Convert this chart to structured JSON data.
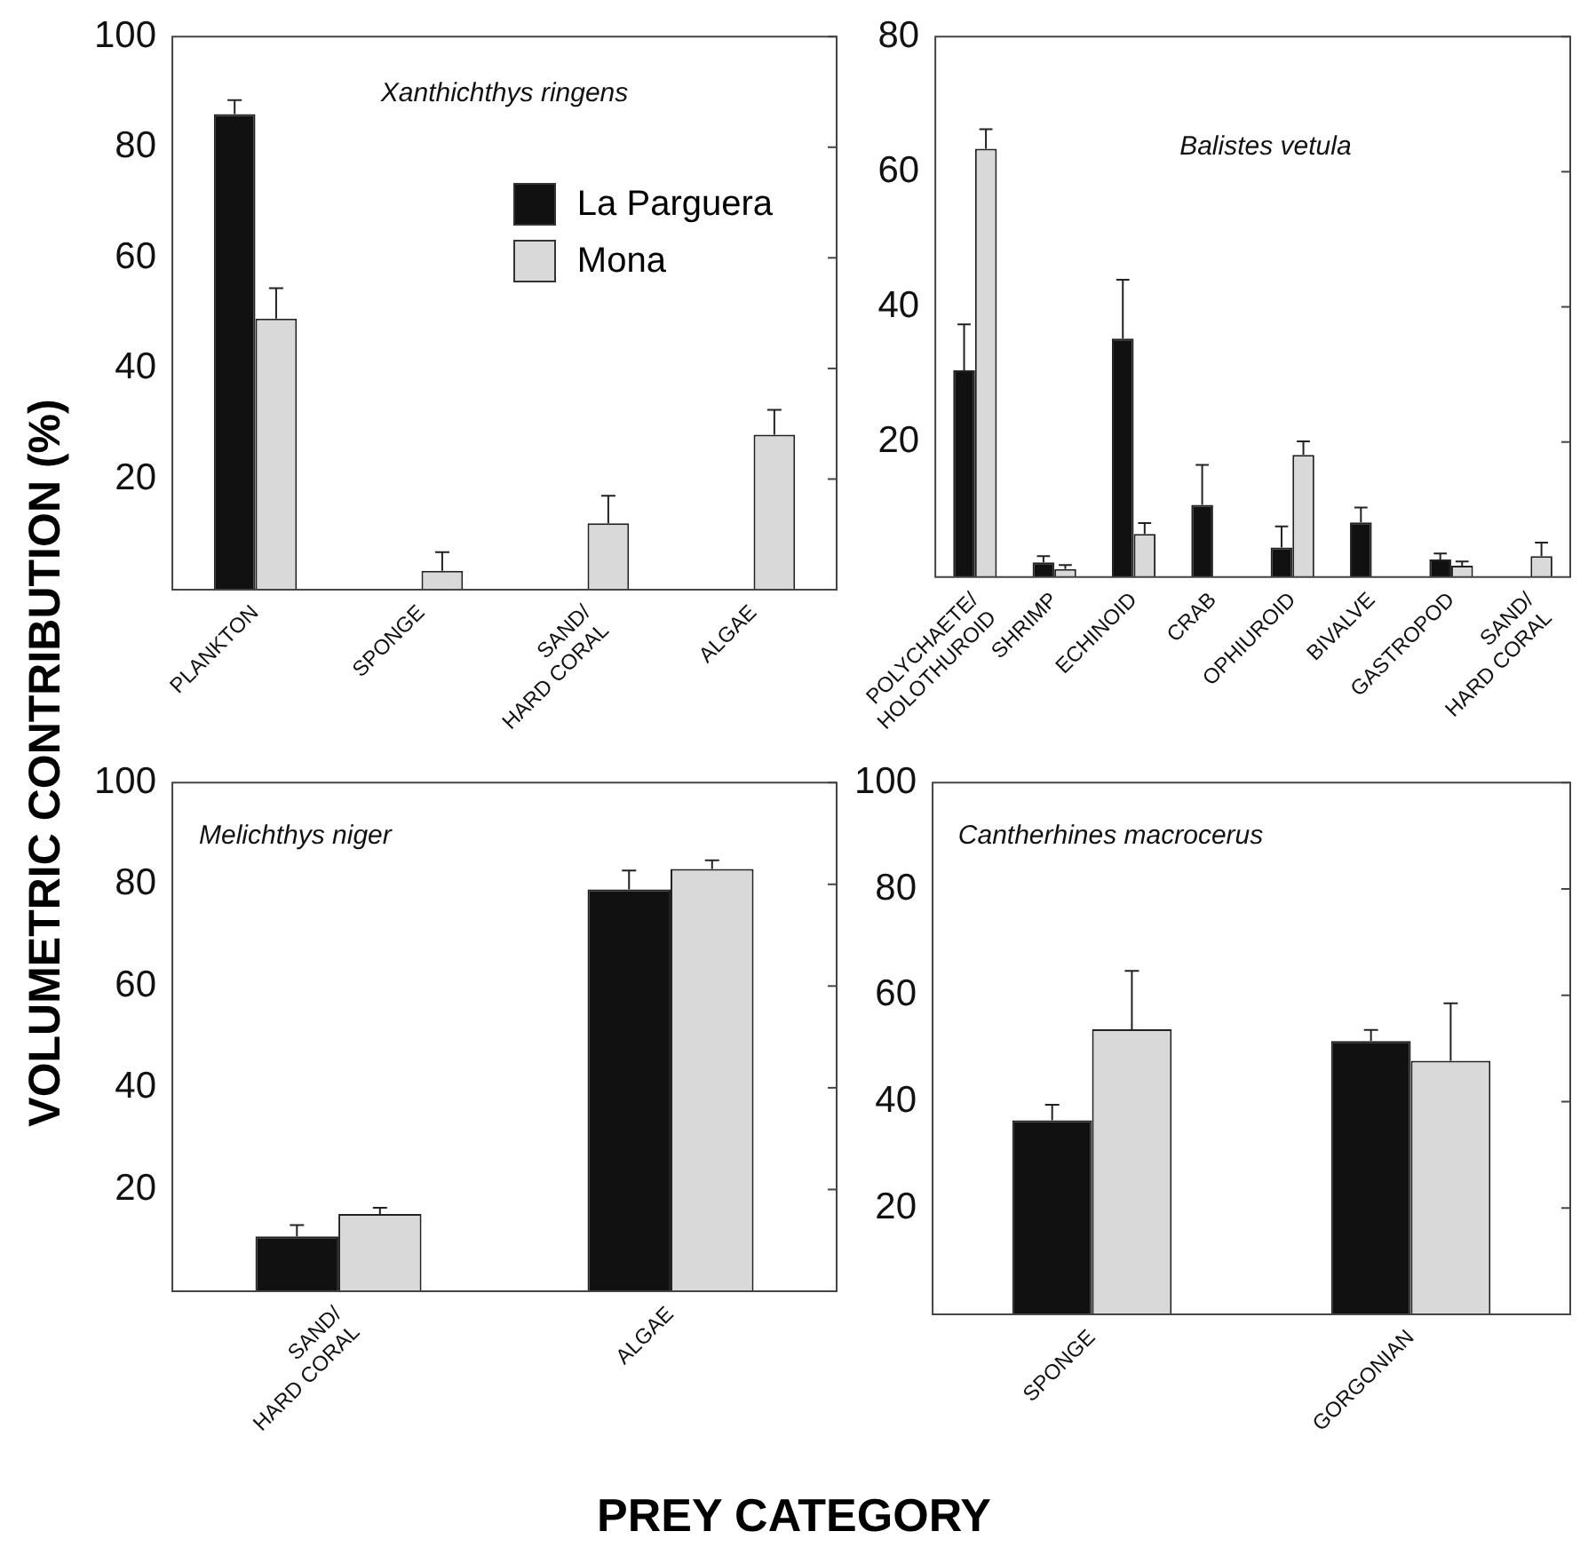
{
  "chart_data": [
    {
      "type": "bar",
      "title": "Xanthichthys ringens",
      "ylabel": "VOLUMETRIC CONTRIBUTION (%)",
      "xlabel": "PREY CATEGORY",
      "categories": [
        "PLANKTON",
        "SPONGE",
        "SAND/\nHARD CORAL",
        "ALGAE"
      ],
      "series": [
        {
          "name": "La Parguera",
          "color": "#111111",
          "values": [
            86,
            null,
            null,
            null
          ],
          "errors": [
            [
              86,
              88.5
            ],
            null,
            null,
            null
          ]
        },
        {
          "name": "Mona",
          "color": "#d9d9d9",
          "values": [
            49,
            3.4,
            12,
            28
          ],
          "errors": [
            [
              49,
              54.5
            ],
            [
              3.4,
              6.8
            ],
            [
              12,
              17
            ],
            [
              28,
              32.5
            ]
          ]
        }
      ],
      "ylim": [
        0,
        100
      ],
      "yticks": [
        20,
        40,
        60,
        80,
        100
      ],
      "legend": "top right"
    },
    {
      "type": "bar",
      "title": "Balistes vetula",
      "categories": [
        "POLYCHAETE/\nHOLOTHUROID",
        "SHRIMP",
        "ECHINOID",
        "CRAB",
        "OPHIUROID",
        "BIVALVE",
        "GASTROPOD",
        "SAND/\nHARD CORAL"
      ],
      "series": [
        {
          "color": "#111111",
          "values": [
            30.6,
            2.2,
            35.3,
            10.7,
            4.4,
            8.1,
            2.6,
            null
          ],
          "errors": [
            [
              30.6,
              37.4
            ],
            [
              2.2,
              3.1
            ],
            [
              35.3,
              44
            ],
            [
              10.7,
              16.6
            ],
            [
              4.4,
              7.5
            ],
            [
              8.1,
              10.3
            ],
            [
              2.6,
              3.5
            ],
            null
          ]
        },
        {
          "color": "#d9d9d9",
          "values": [
            63.4,
            1.2,
            6.4,
            null,
            18.1,
            null,
            1.7,
            3.1
          ],
          "errors": [
            [
              63.4,
              66.3
            ],
            [
              1.2,
              1.8
            ],
            [
              6.4,
              8
            ],
            null,
            [
              18.1,
              20.1
            ],
            null,
            [
              1.7,
              2.3
            ],
            [
              3.1,
              5.1
            ]
          ]
        }
      ],
      "ylim": [
        0,
        80
      ],
      "yticks": [
        20,
        40,
        60,
        80
      ]
    },
    {
      "type": "bar",
      "title": "Melichthys niger",
      "categories": [
        "SAND/\nHARD CORAL",
        "ALGAE"
      ],
      "series": [
        {
          "color": "#111111",
          "values": [
            10.8,
            79
          ],
          "errors": [
            [
              10.8,
              13
            ],
            [
              79,
              82.7
            ]
          ]
        },
        {
          "color": "#d9d9d9",
          "values": [
            15.2,
            83
          ],
          "errors": [
            [
              15.2,
              16.4
            ],
            [
              83,
              84.7
            ]
          ]
        }
      ],
      "ylim": [
        0,
        100
      ],
      "yticks": [
        20,
        40,
        60,
        80,
        100
      ]
    },
    {
      "type": "bar",
      "title": "Cantherhines macrocerus",
      "categories": [
        "SPONGE",
        "GORGONIAN"
      ],
      "series": [
        {
          "color": "#111111",
          "values": [
            36.5,
            51.4
          ],
          "errors": [
            [
              36.5,
              39.4
            ],
            [
              51.4,
              53.5
            ]
          ]
        },
        {
          "color": "#d9d9d9",
          "values": [
            53.6,
            47.7
          ],
          "errors": [
            [
              53.6,
              64.6
            ],
            [
              47.7,
              58.5
            ]
          ]
        }
      ],
      "ylim": [
        0,
        100
      ],
      "yticks": [
        20,
        40,
        60,
        80,
        100
      ]
    }
  ]
}
